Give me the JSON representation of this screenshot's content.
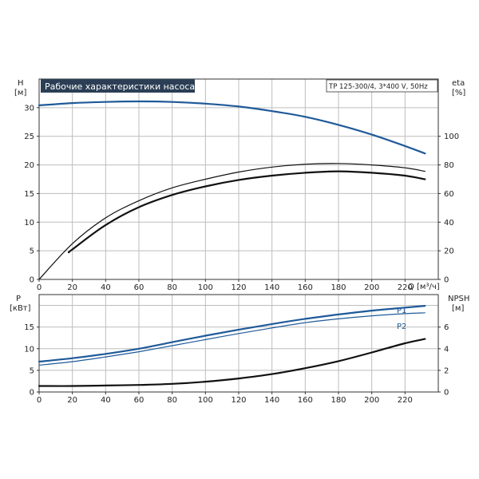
{
  "colors": {
    "blue": "#1f5a99",
    "black": "#111111",
    "title_bg": "#2b3e55",
    "title_fg": "#ffffff",
    "grid": "#bdbdbd"
  },
  "header": {
    "title": "Рабочие характеристики насоса",
    "model": "TP 125-300/4, 3*400 V, 50Hz"
  },
  "chart_data": [
    {
      "type": "line",
      "panel": "top",
      "x_axis": {
        "label": "Q",
        "unit": "[м³/ч]",
        "range": [
          0,
          240
        ],
        "ticks": [
          0,
          20,
          40,
          60,
          80,
          100,
          120,
          140,
          160,
          180,
          200,
          220
        ]
      },
      "left_axis": {
        "label": "H",
        "unit": "[м]",
        "range": [
          0,
          35
        ],
        "ticks": [
          0,
          5,
          10,
          15,
          20,
          25,
          30
        ]
      },
      "right_axis": {
        "label": "eta",
        "unit": "[%]",
        "range": [
          0,
          140
        ],
        "ticks": [
          0,
          20,
          40,
          60,
          80,
          100
        ]
      },
      "grid": true,
      "series": [
        {
          "axis": "left",
          "color": "blue",
          "width": 2.2,
          "x": [
            0,
            20,
            40,
            60,
            80,
            100,
            120,
            140,
            160,
            180,
            200,
            220,
            232
          ],
          "y": [
            30.4,
            30.8,
            31.0,
            31.1,
            31.0,
            30.7,
            30.2,
            29.4,
            28.4,
            27.0,
            25.3,
            23.3,
            22.0
          ]
        },
        {
          "axis": "right",
          "color": "black",
          "width": 1.2,
          "x": [
            0,
            20,
            40,
            60,
            80,
            100,
            120,
            140,
            160,
            180,
            200,
            220,
            232
          ],
          "y": [
            0,
            25,
            43,
            55,
            64,
            70,
            75,
            78.5,
            80.5,
            81,
            80,
            78,
            75.5
          ]
        },
        {
          "axis": "right",
          "color": "black",
          "width": 2.2,
          "x": [
            18,
            20,
            40,
            60,
            80,
            100,
            120,
            140,
            160,
            180,
            200,
            220,
            232
          ],
          "y": [
            19,
            21,
            38,
            50.5,
            59,
            65,
            69.5,
            72.5,
            74.5,
            75.5,
            74.5,
            72.5,
            70
          ]
        }
      ]
    },
    {
      "type": "line",
      "panel": "bottom",
      "x_axis": {
        "range": [
          0,
          240
        ],
        "ticks": [
          0,
          20,
          40,
          60,
          80,
          100,
          120,
          140,
          160,
          180,
          200,
          220
        ]
      },
      "left_axis": {
        "label": "P",
        "unit": "[кВт]",
        "range": [
          0,
          22.5
        ],
        "ticks": [
          0,
          5,
          10,
          15
        ]
      },
      "right_axis": {
        "label": "NPSH",
        "unit": "[м]",
        "range": [
          0,
          9
        ],
        "ticks": [
          0,
          2,
          4,
          6
        ]
      },
      "grid": true,
      "series": [
        {
          "name": "P1",
          "axis": "left",
          "color": "blue",
          "width": 2.2,
          "x": [
            0,
            20,
            40,
            60,
            80,
            100,
            120,
            140,
            160,
            180,
            200,
            220,
            232
          ],
          "y": [
            7.0,
            7.8,
            8.8,
            10.0,
            11.5,
            13.0,
            14.4,
            15.7,
            16.9,
            17.9,
            18.8,
            19.5,
            19.9
          ]
        },
        {
          "name": "P2",
          "axis": "left",
          "color": "blue",
          "width": 1.2,
          "x": [
            0,
            20,
            40,
            60,
            80,
            100,
            120,
            140,
            160,
            180,
            200,
            220,
            232
          ],
          "y": [
            6.2,
            7.0,
            8.1,
            9.3,
            10.7,
            12.1,
            13.5,
            14.8,
            16.0,
            16.9,
            17.6,
            18.1,
            18.3
          ]
        },
        {
          "axis": "right",
          "color": "black",
          "width": 2.2,
          "x": [
            0,
            20,
            40,
            60,
            80,
            100,
            120,
            140,
            160,
            180,
            200,
            220,
            232
          ],
          "y": [
            0.55,
            0.55,
            0.6,
            0.65,
            0.75,
            0.95,
            1.25,
            1.65,
            2.2,
            2.85,
            3.65,
            4.5,
            4.9
          ]
        }
      ]
    }
  ]
}
